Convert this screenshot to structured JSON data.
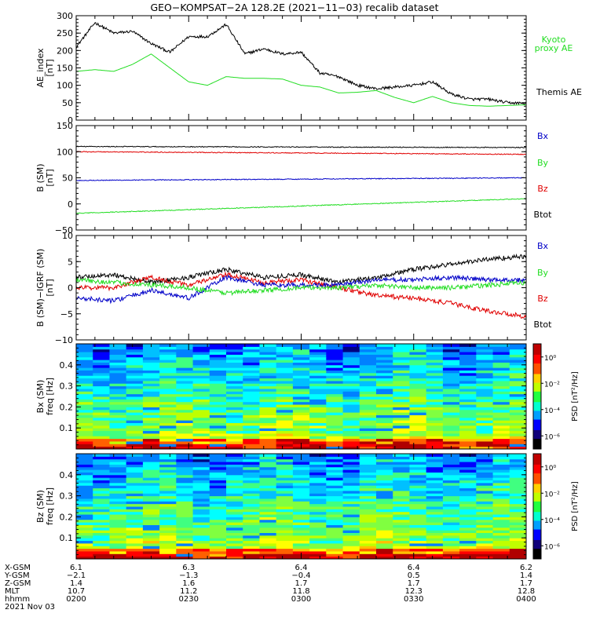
{
  "title": "GEO−KOMPSAT−2A 128.2E (2021−11−03) recalib dataset",
  "colors": {
    "black": "#000000",
    "red": "#e00000",
    "green": "#22dd22",
    "blue": "#0000c8",
    "label_green": "#22dd22"
  },
  "chart_data": [
    {
      "type": "line",
      "ylabel_line1": "AE_index",
      "ylabel_line2": "[nT]",
      "ylim": [
        0,
        300
      ],
      "yticks": [
        "0",
        "50",
        "100",
        "150",
        "200",
        "250",
        "300"
      ],
      "yticks_values": [
        0,
        50,
        100,
        150,
        200,
        250,
        300
      ],
      "x": [
        0,
        5,
        10,
        15,
        20,
        25,
        30,
        35,
        40,
        45,
        50,
        55,
        60,
        65,
        70,
        75,
        80,
        85,
        90,
        95,
        100,
        105,
        110,
        115,
        120
      ],
      "series": [
        {
          "name": "Themis AE",
          "color": "black",
          "values": [
            210,
            280,
            250,
            255,
            220,
            195,
            240,
            240,
            275,
            190,
            205,
            190,
            195,
            135,
            125,
            100,
            90,
            95,
            100,
            110,
            75,
            60,
            60,
            50,
            48
          ]
        },
        {
          "name": "Kyoto proxy AE",
          "color": "green",
          "values": [
            140,
            145,
            140,
            160,
            190,
            150,
            110,
            100,
            125,
            120,
            120,
            118,
            100,
            95,
            78,
            80,
            85,
            65,
            50,
            68,
            50,
            42,
            40,
            42,
            44
          ]
        }
      ]
    },
    {
      "type": "line",
      "ylabel_line1": "B (SM)",
      "ylabel_line2": "[nT]",
      "ylim": [
        -50,
        150
      ],
      "yticks": [
        "−50",
        "0",
        "50",
        "100",
        "150"
      ],
      "yticks_values": [
        -50,
        0,
        50,
        100,
        150
      ],
      "x": [
        0,
        120
      ],
      "legend": [
        "Bx",
        "By",
        "Bz",
        "Btot"
      ],
      "legend_colors": [
        "blue",
        "green",
        "red",
        "black"
      ],
      "series": [
        {
          "name": "Btot",
          "color": "black",
          "values": [
            110,
            108
          ]
        },
        {
          "name": "Bz",
          "color": "red",
          "values": [
            100,
            95
          ]
        },
        {
          "name": "Bx",
          "color": "blue",
          "values": [
            45,
            50
          ]
        },
        {
          "name": "By",
          "color": "green",
          "values": [
            -18,
            10
          ]
        }
      ]
    },
    {
      "type": "line",
      "ylabel_line1": "B (SM)−IGRF (SM)",
      "ylabel_line2": "[nT]",
      "ylim": [
        -10,
        10
      ],
      "yticks": [
        "−10",
        "−5",
        "0",
        "5",
        "10"
      ],
      "yticks_values": [
        -10,
        -5,
        0,
        5,
        10
      ],
      "x": [
        0,
        10,
        20,
        30,
        40,
        50,
        60,
        70,
        80,
        90,
        100,
        110,
        120
      ],
      "legend": [
        "Bx",
        "By",
        "Bz",
        "Btot"
      ],
      "legend_colors": [
        "blue",
        "green",
        "red",
        "black"
      ],
      "series": [
        {
          "name": "Btot",
          "color": "black",
          "values": [
            2,
            2.5,
            1,
            2,
            3.5,
            2,
            2.5,
            1,
            2,
            3.5,
            4.5,
            5.5,
            6
          ]
        },
        {
          "name": "Bz",
          "color": "red",
          "values": [
            0,
            0,
            2,
            0.5,
            2.5,
            1,
            1.5,
            0,
            -1.5,
            -2,
            -3,
            -4.5,
            -5.5
          ]
        },
        {
          "name": "Bx",
          "color": "blue",
          "values": [
            -2,
            -2.5,
            -0.5,
            -2,
            2,
            0.5,
            0.5,
            0.5,
            1.5,
            1.5,
            2,
            1.5,
            1.5
          ]
        },
        {
          "name": "By",
          "color": "green",
          "values": [
            1.5,
            1,
            0.5,
            0,
            -1,
            -0.5,
            0,
            0,
            0.5,
            0,
            0,
            0.5,
            1
          ]
        }
      ]
    },
    {
      "type": "heatmap",
      "ylabel_line1": "Bx (SM)",
      "ylabel_line2": "freq [Hz]",
      "ylim": [
        0,
        0.5
      ],
      "yticks": [
        "0.1",
        "0.2",
        "0.3",
        "0.4"
      ],
      "yticks_values": [
        0.1,
        0.2,
        0.3,
        0.4
      ],
      "colorbar_label": "PSD [nT²/Hz]",
      "colorbar_ticks": [
        "10⁰",
        "10⁻²",
        "10⁻⁴",
        "10⁻⁶"
      ],
      "colorbar_range_log": [
        -7,
        1
      ]
    },
    {
      "type": "heatmap",
      "ylabel_line1": "Bz (SM)",
      "ylabel_line2": "freq [Hz]",
      "ylim": [
        0,
        0.5
      ],
      "yticks": [
        "0.1",
        "0.2",
        "0.3",
        "0.4"
      ],
      "yticks_values": [
        0.1,
        0.2,
        0.3,
        0.4
      ],
      "colorbar_label": "PSD [nT²/Hz]",
      "colorbar_ticks": [
        "10⁰",
        "10⁻²",
        "10⁻⁴",
        "10⁻⁶"
      ],
      "colorbar_range_log": [
        -7,
        1
      ]
    }
  ],
  "ephemeris": {
    "row_labels": [
      "X-GSM",
      "Y-GSM",
      "Z-GSM",
      "MLT",
      "hhmm"
    ],
    "columns": [
      [
        "6.1",
        "−2.1",
        "1.4",
        "10.7",
        "0200"
      ],
      [
        "6.3",
        "−1.3",
        "1.6",
        "11.2",
        "0230"
      ],
      [
        "6.4",
        "−0.4",
        "1.7",
        "11.8",
        "0300"
      ],
      [
        "6.4",
        "0.5",
        "1.7",
        "12.3",
        "0330"
      ],
      [
        "6.2",
        "1.4",
        "1.7",
        "12.8",
        "0400"
      ]
    ],
    "date": "2021 Nov 03"
  }
}
